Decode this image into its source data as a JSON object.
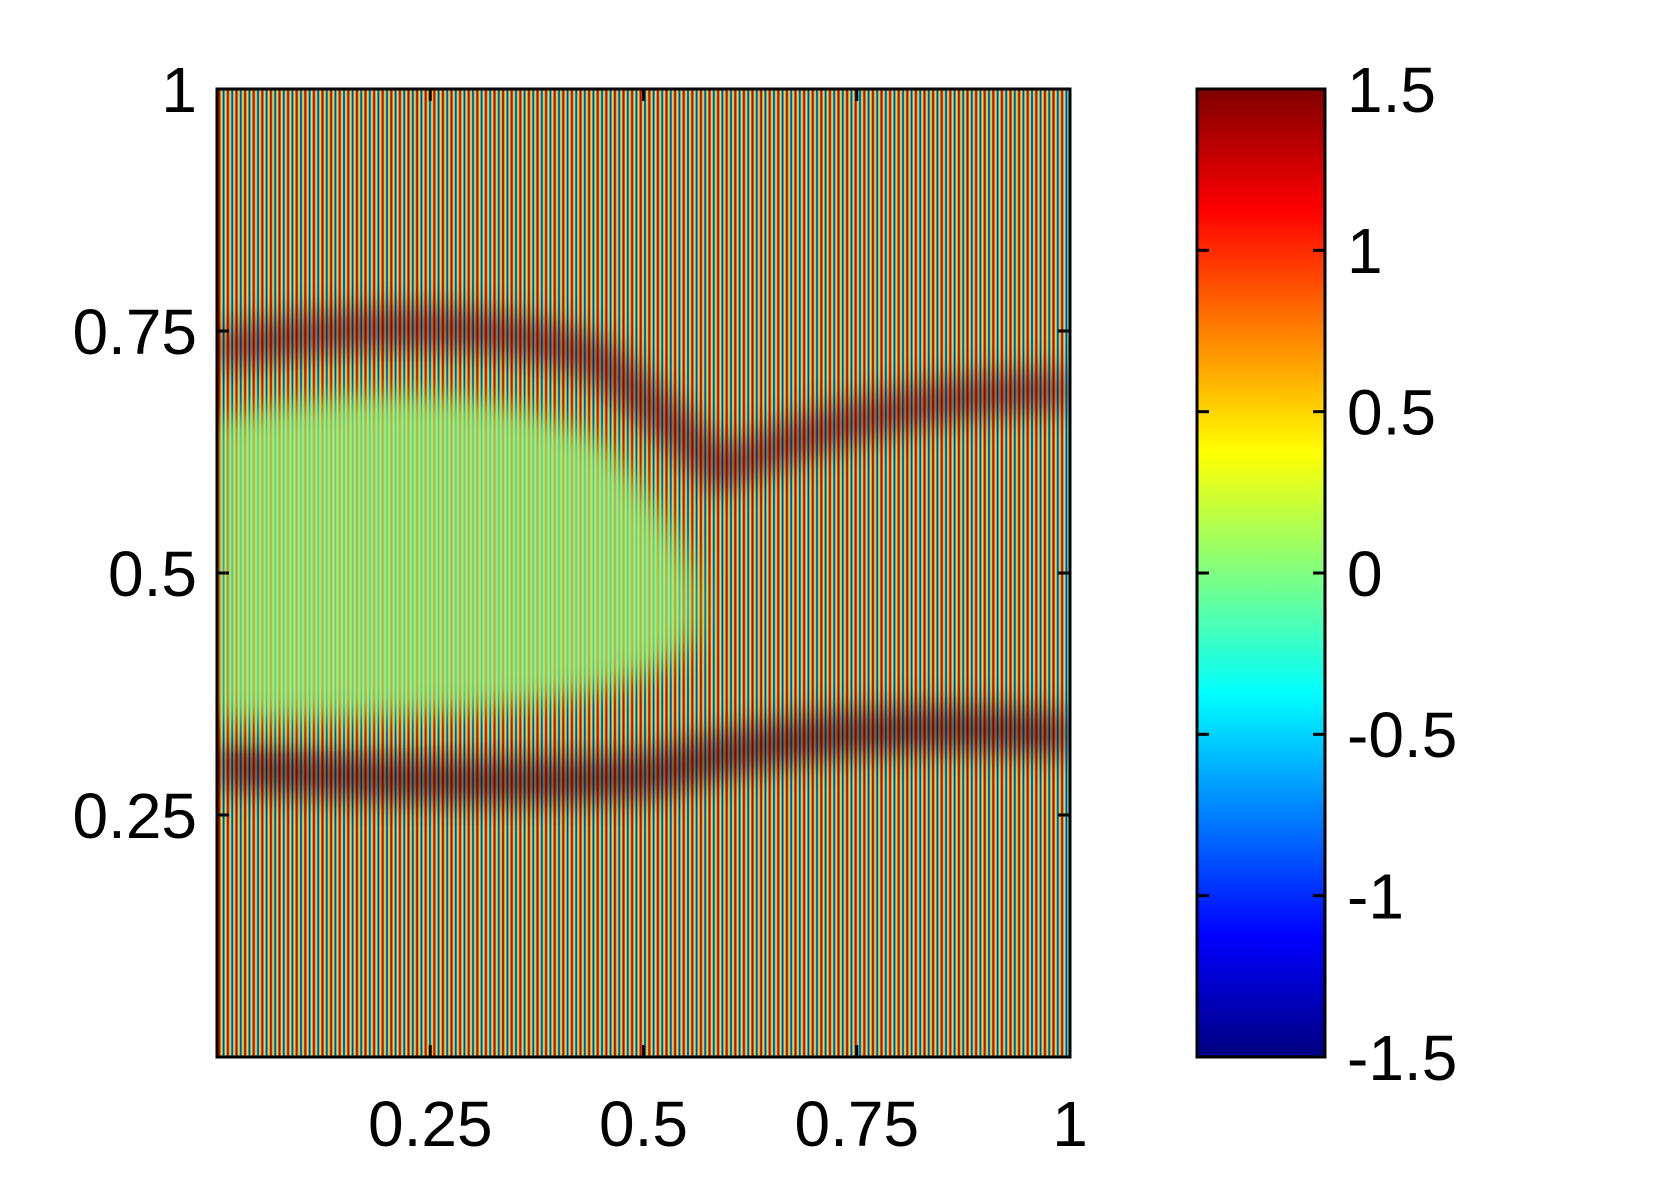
{
  "chart_data": {
    "type": "heatmap",
    "colormap": "jet",
    "xlim": [
      0,
      1
    ],
    "xticks": [
      0.25,
      0.5,
      0.75,
      1
    ],
    "ylim": [
      0,
      1
    ],
    "yticks": [
      0.25,
      0.5,
      0.75,
      1
    ],
    "colorbar": {
      "lim": [
        -1.5,
        1.5
      ],
      "ticks": [
        -1.5,
        -1,
        -0.5,
        0,
        0.5,
        1,
        1.5
      ]
    }
  }
}
